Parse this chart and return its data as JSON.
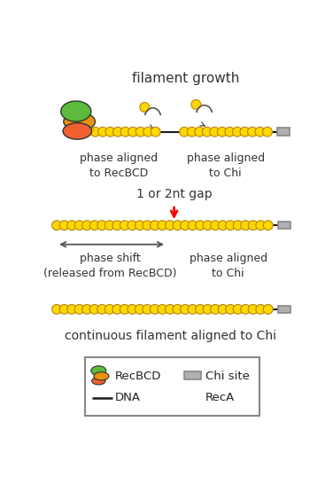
{
  "bg_color": "#ffffff",
  "recA_fill": "#FFD700",
  "recA_edge": "#B8860B",
  "dna_color": "#1a1a1a",
  "chi_fill": "#b0b0b0",
  "chi_edge": "#888888",
  "green_color": "#5CBB3C",
  "orange_color": "#E8930A",
  "salmon_color": "#F06030",
  "title": "filament growth",
  "label_p1a": "phase aligned\nto RecBCD",
  "label_p1b": "phase aligned\nto Chi",
  "label_gap": "1 or 2nt gap",
  "label_shift": "phase shift\n(released from RecBCD)",
  "label_p2b": "phase aligned\nto Chi",
  "label_cont": "continuous filament aligned to Chi",
  "leg_recbcd": "RecBCD",
  "leg_chisite": "Chi site",
  "leg_dna": "DNA",
  "leg_reca": "RecA"
}
